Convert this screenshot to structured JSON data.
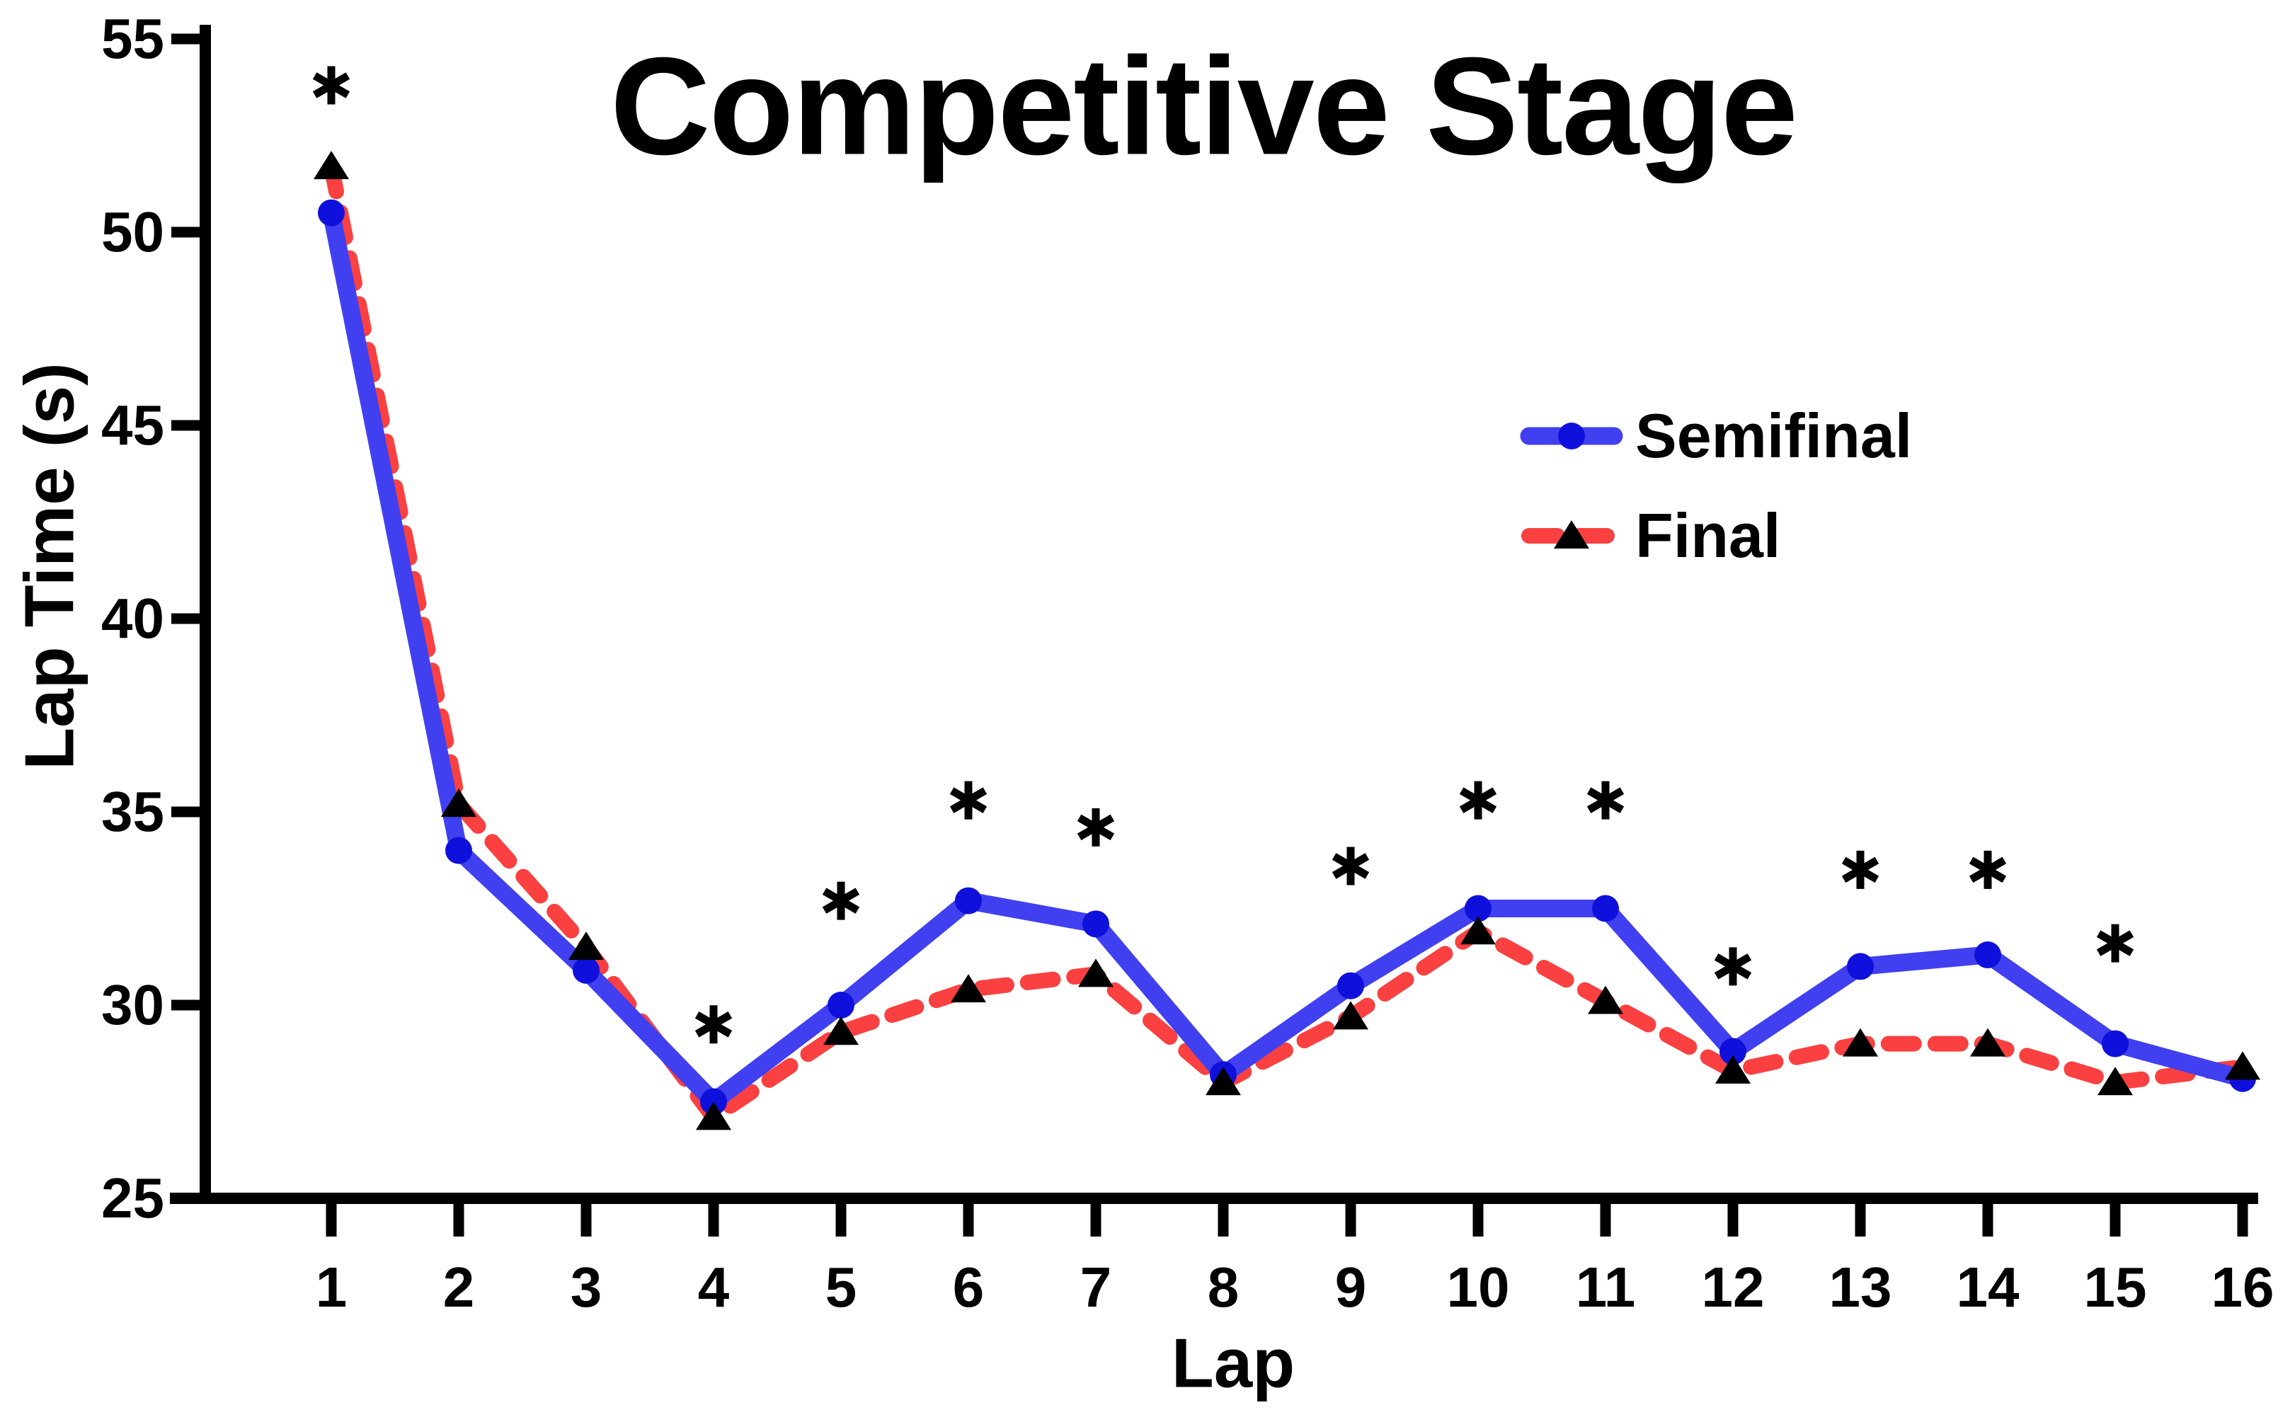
{
  "title": "Competitive Stage",
  "axes": {
    "x_label": "Lap",
    "y_label": "Lap Time (s)"
  },
  "legend": {
    "items": [
      {
        "label": "Semifinal"
      },
      {
        "label": "Final"
      }
    ]
  },
  "chart_data": {
    "type": "line",
    "title": "Competitive Stage",
    "xlabel": "Lap",
    "ylabel": "Lap Time (s)",
    "x": [
      1,
      2,
      3,
      4,
      5,
      6,
      7,
      8,
      9,
      10,
      11,
      12,
      13,
      14,
      15,
      16
    ],
    "x_tick_labels": [
      "1",
      "2",
      "3",
      "4",
      "5",
      "6",
      "7",
      "8",
      "9",
      "10",
      "11",
      "12",
      "13",
      "14",
      "15",
      "16"
    ],
    "ylim": [
      25,
      55
    ],
    "y_ticks": [
      25,
      30,
      35,
      40,
      45,
      50,
      55
    ],
    "y_tick_labels": [
      "25",
      "30",
      "35",
      "40",
      "45",
      "50",
      "55"
    ],
    "grid": false,
    "legend_position": "inside-upper-right",
    "series": [
      {
        "name": "Semifinal",
        "color": "#4040f0",
        "marker": "circle",
        "marker_color": "#1010dc",
        "line_style": "solid",
        "values": [
          50.5,
          34.0,
          30.9,
          27.5,
          30.0,
          32.7,
          32.1,
          28.2,
          30.5,
          32.5,
          32.5,
          28.8,
          31.0,
          31.3,
          29.0,
          28.1
        ]
      },
      {
        "name": "Final",
        "color": "#fa4040",
        "marker": "triangle",
        "marker_color": "#000000",
        "line_style": "dashed",
        "values": [
          51.7,
          35.2,
          31.5,
          27.1,
          29.3,
          30.4,
          30.8,
          28.0,
          29.7,
          31.9,
          30.1,
          28.3,
          29.0,
          29.0,
          28.0,
          28.4
        ]
      }
    ],
    "annotations": [
      {
        "symbol": "*",
        "lap": 1,
        "y": 53.8
      },
      {
        "symbol": "*",
        "lap": 4,
        "y": 29.5
      },
      {
        "symbol": "*",
        "lap": 5,
        "y": 32.7
      },
      {
        "symbol": "*",
        "lap": 6,
        "y": 35.3
      },
      {
        "symbol": "*",
        "lap": 7,
        "y": 34.6
      },
      {
        "symbol": "*",
        "lap": 9,
        "y": 33.6
      },
      {
        "symbol": "*",
        "lap": 10,
        "y": 35.3
      },
      {
        "symbol": "*",
        "lap": 11,
        "y": 35.3
      },
      {
        "symbol": "*",
        "lap": 12,
        "y": 31.0
      },
      {
        "symbol": "*",
        "lap": 13,
        "y": 33.5
      },
      {
        "symbol": "*",
        "lap": 14,
        "y": 33.5
      },
      {
        "symbol": "*",
        "lap": 15,
        "y": 31.6
      }
    ],
    "colors": {
      "axis": "#000000",
      "text": "#000000",
      "background": "#ffffff"
    }
  }
}
